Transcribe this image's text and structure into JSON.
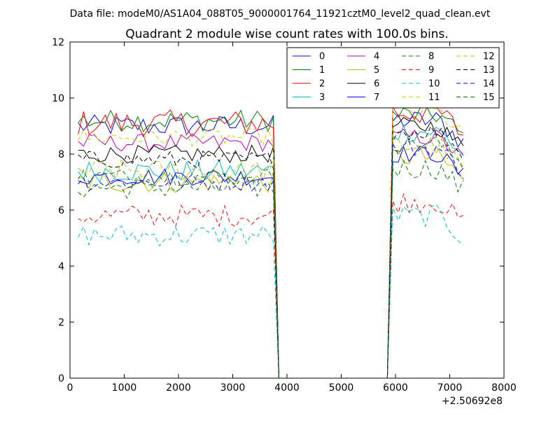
{
  "chart_data": {
    "type": "line",
    "suptitle": "Data file: modeM0/AS1A04_088T05_9000001764_11921cztM0_level2_quad_clean.evt",
    "title": "Quadrant 2 module wise count rates with 100.0s bins.",
    "xlabel": "",
    "ylabel": "",
    "x_offset_label": "+2.50692e8",
    "xlim": [
      0,
      8000
    ],
    "ylim": [
      0,
      12
    ],
    "xticks": [
      0,
      1000,
      2000,
      3000,
      4000,
      5000,
      6000,
      7000,
      8000
    ],
    "yticks": [
      0,
      2,
      4,
      6,
      8,
      10,
      12
    ],
    "grid": false,
    "legend_position": "upper right",
    "legend_columns": 4,
    "bin_seconds": 100,
    "gap": {
      "drop_start": 3750,
      "zero_from": 3850,
      "zero_to": 5850,
      "rise_end": 5950
    },
    "segment1_start": 150,
    "segment2_end": 7250,
    "series": [
      {
        "name": "0",
        "color": "#0000ff",
        "dash": "solid",
        "level1": 9.0,
        "level2": 9.2,
        "noise": 0.25
      },
      {
        "name": "1",
        "color": "#008000",
        "dash": "solid",
        "level1": 9.2,
        "level2": 9.4,
        "noise": 0.25
      },
      {
        "name": "2",
        "color": "#ff0000",
        "dash": "solid",
        "level1": 9.1,
        "level2": 9.5,
        "noise": 0.3
      },
      {
        "name": "3",
        "color": "#00bfbf",
        "dash": "solid",
        "level1": 7.4,
        "level2": 8.8,
        "noise": 0.25
      },
      {
        "name": "4",
        "color": "#bf00bf",
        "dash": "solid",
        "level1": 8.4,
        "level2": 8.6,
        "noise": 0.2
      },
      {
        "name": "5",
        "color": "#bfbf00",
        "dash": "solid",
        "level1": 7.0,
        "level2": 7.9,
        "noise": 0.25
      },
      {
        "name": "6",
        "color": "#000000",
        "dash": "solid",
        "level1": 8.0,
        "level2": 9.0,
        "noise": 0.2
      },
      {
        "name": "7",
        "color": "#0000ff",
        "dash": "solid",
        "level1": 7.2,
        "level2": 8.0,
        "noise": 0.2
      },
      {
        "name": "8",
        "color": "#008000",
        "dash": "dashed",
        "level1": 6.8,
        "level2": 7.5,
        "noise": 0.25
      },
      {
        "name": "9",
        "color": "#ff0000",
        "dash": "dashed",
        "level1": 5.8,
        "level2": 6.3,
        "noise": 0.25
      },
      {
        "name": "10",
        "color": "#00bfbf",
        "dash": "dashed",
        "level1": 5.1,
        "level2": 5.8,
        "noise": 0.25
      },
      {
        "name": "11",
        "color": "#cccc00",
        "dash": "dashed",
        "level1": 8.6,
        "level2": 9.5,
        "noise": 0.2
      },
      {
        "name": "12",
        "color": "#bfbf00",
        "dash": "dashed",
        "level1": 7.4,
        "level2": 8.3,
        "noise": 0.25
      },
      {
        "name": "13",
        "color": "#000000",
        "dash": "dashed",
        "level1": 7.8,
        "level2": 8.8,
        "noise": 0.2
      },
      {
        "name": "14",
        "color": "#0000ff",
        "dash": "dashed",
        "level1": 7.0,
        "level2": 8.2,
        "noise": 0.2
      },
      {
        "name": "15",
        "color": "#008000",
        "dash": "dashed",
        "level1": 7.2,
        "level2": 8.4,
        "noise": 0.2
      }
    ],
    "special_series": {
      "name": "11",
      "color": "#ff8080",
      "note": "peak near x=6000 at ~10.8"
    }
  }
}
